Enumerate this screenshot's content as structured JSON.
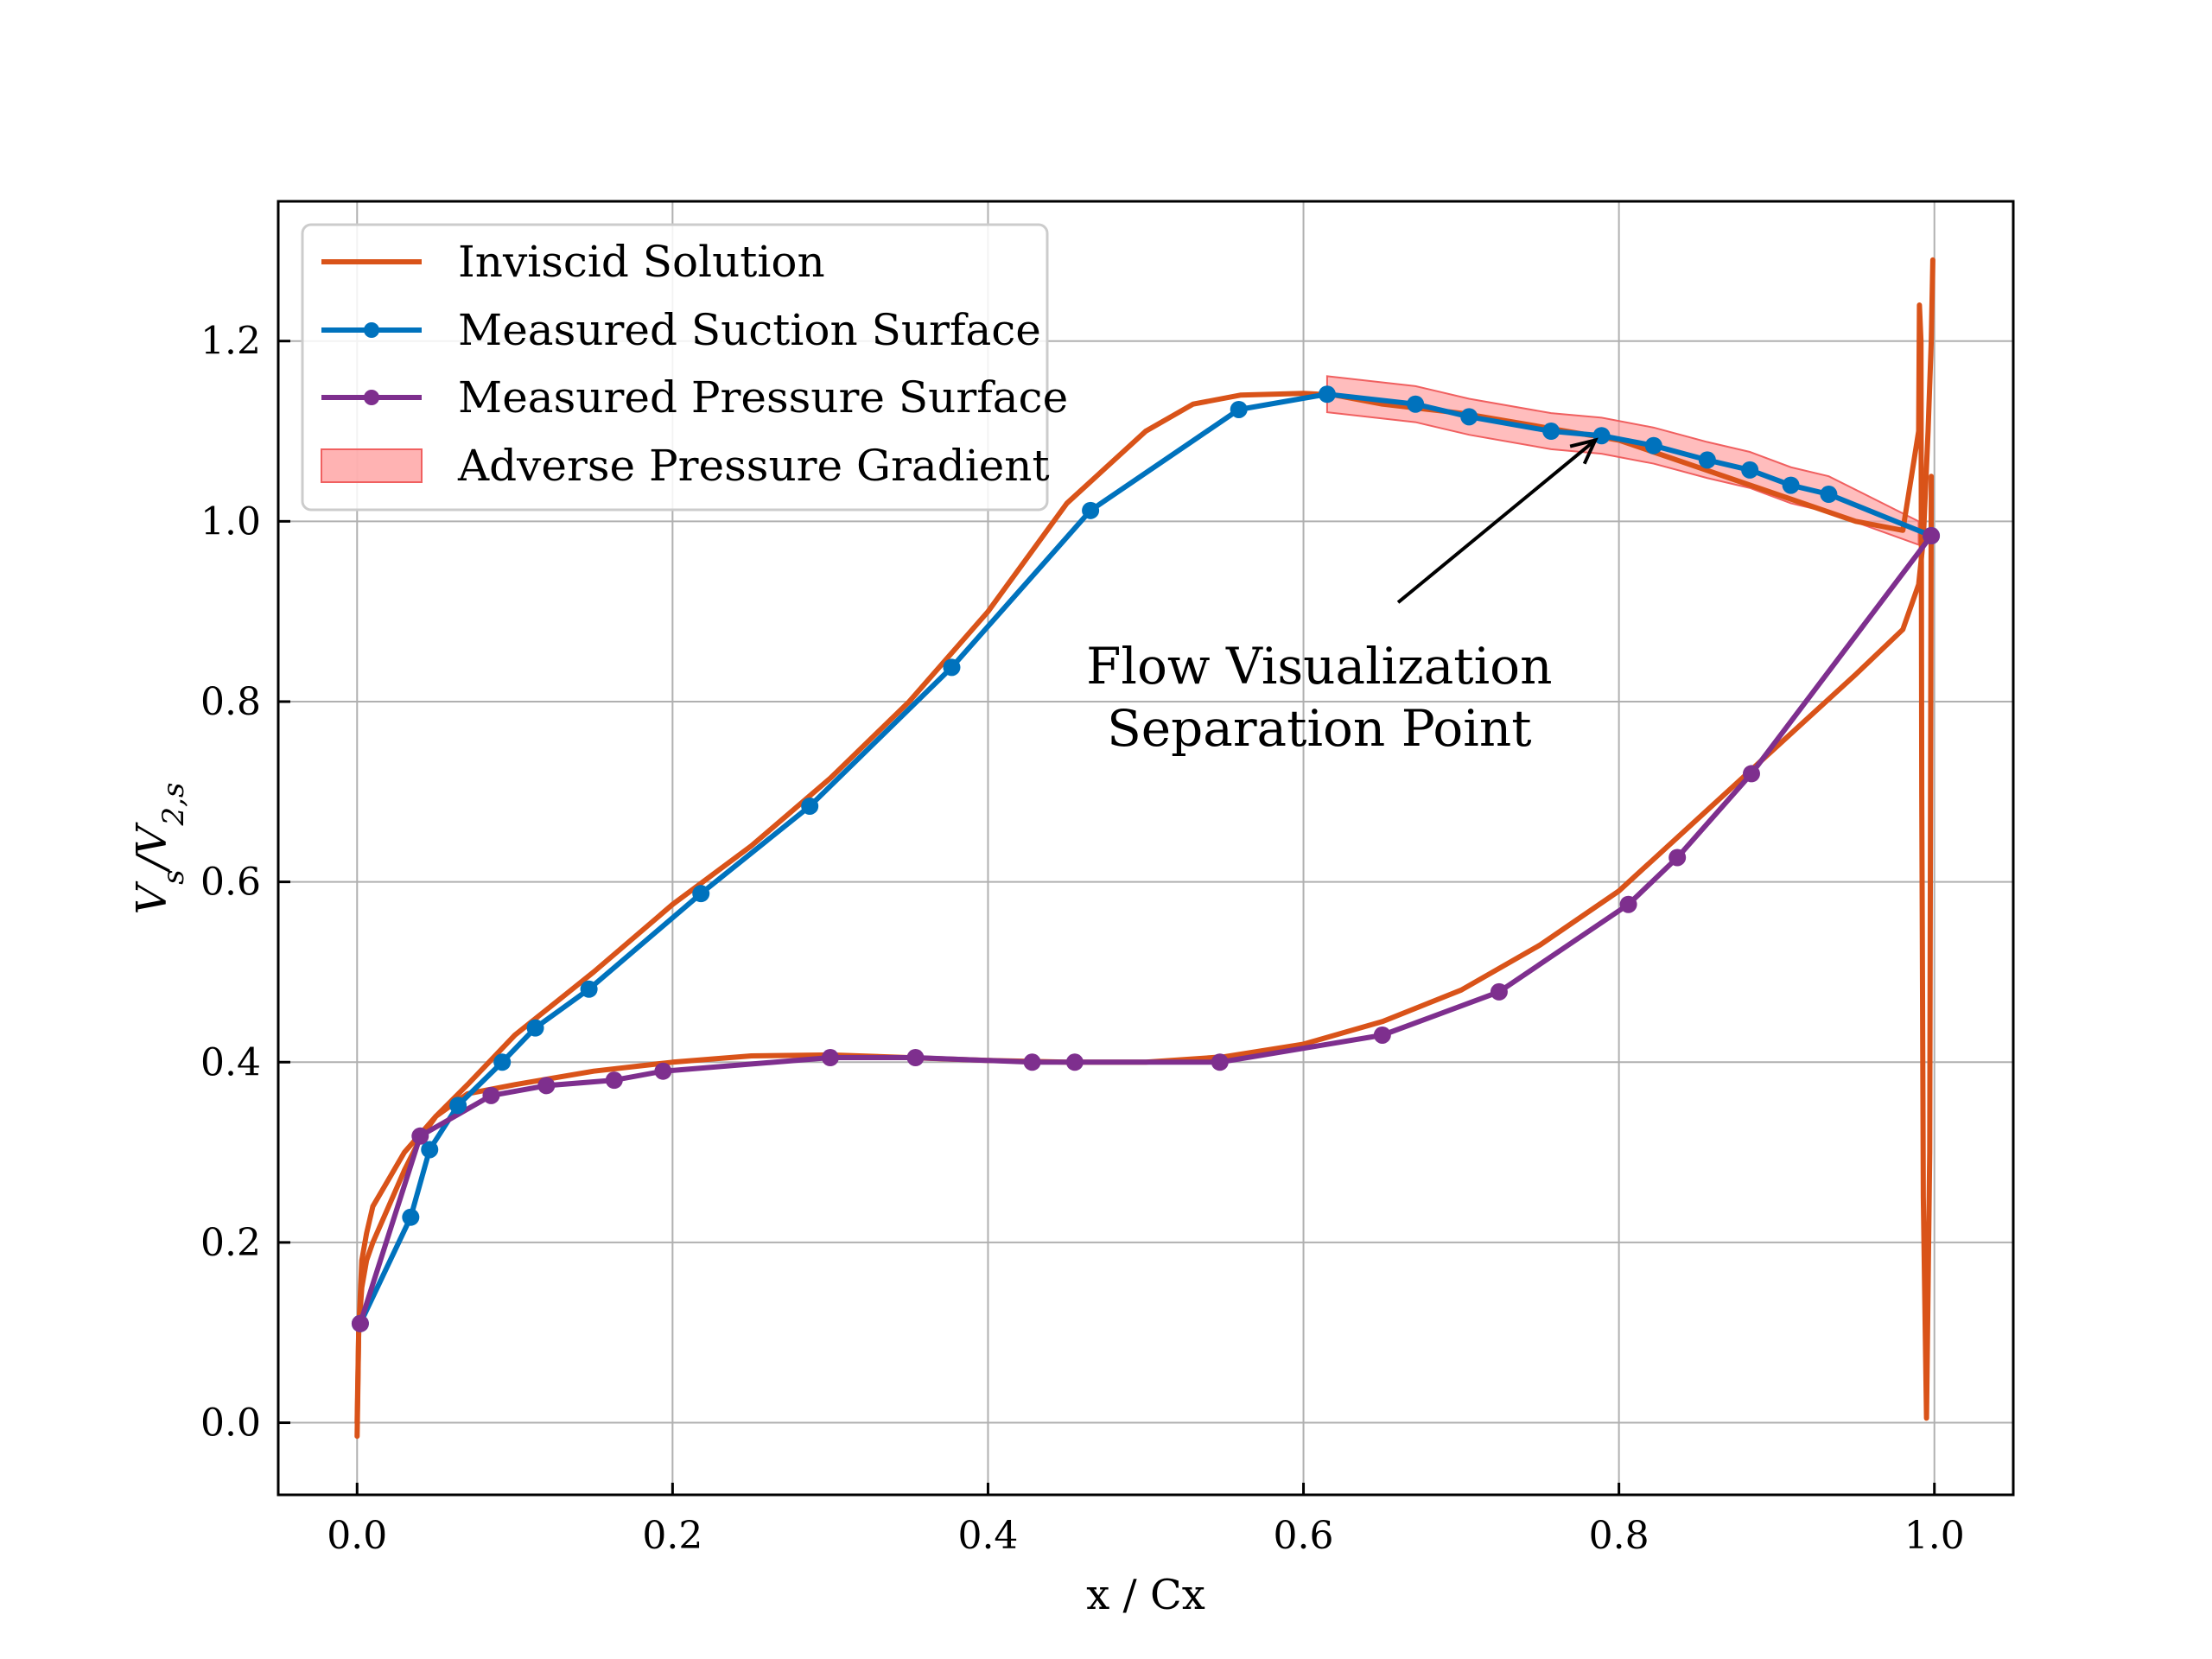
{
  "chart_data": {
    "type": "line",
    "title": "",
    "xlabel": "x / Cx",
    "ylabel": "Vs/V2,s",
    "xlim": [
      -0.05,
      1.05
    ],
    "ylim": [
      -0.08,
      1.355
    ],
    "xticks": [
      0.0,
      0.2,
      0.4,
      0.6,
      0.8,
      1.0
    ],
    "yticks": [
      0.0,
      0.2,
      0.4,
      0.6,
      0.8,
      1.0,
      1.2
    ],
    "xtick_labels": [
      "0.0",
      "0.2",
      "0.4",
      "0.6",
      "0.8",
      "1.0"
    ],
    "ytick_labels": [
      "0.0",
      "0.2",
      "0.4",
      "0.6",
      "0.8",
      "1.0",
      "1.2"
    ],
    "grid": true,
    "legend_position": "top-left",
    "series": [
      {
        "name": "Inviscid Solution",
        "color": "#d95319",
        "marker": "none",
        "segments": [
          {
            "x": [
              0.0,
              0.0005,
              0.001,
              0.003,
              0.006,
              0.01,
              0.02,
              0.03,
              0.05,
              0.07,
              0.1,
              0.15,
              0.2,
              0.25,
              0.3,
              0.35,
              0.4,
              0.45,
              0.5,
              0.53,
              0.56,
              0.6,
              0.62,
              0.65,
              0.7,
              0.75,
              0.8,
              0.85,
              0.9,
              0.95,
              0.98,
              0.99,
              0.9905,
              0.9915,
              0.992,
              0.993,
              0.995,
              0.997,
              0.998
            ],
            "y": [
              -0.015,
              0.04,
              0.1,
              0.18,
              0.21,
              0.24,
              0.27,
              0.3,
              0.34,
              0.375,
              0.43,
              0.5,
              0.575,
              0.64,
              0.715,
              0.8,
              0.9,
              1.02,
              1.1,
              1.13,
              1.14,
              1.142,
              1.14,
              1.13,
              1.12,
              1.105,
              1.09,
              1.06,
              1.03,
              1.0,
              0.99,
              1.1,
              1.24,
              1.2,
              0.7,
              0.25,
              0.005,
              0.3,
              1.05
            ]
          },
          {
            "x": [
              0.0,
              0.001,
              0.003,
              0.006,
              0.01,
              0.02,
              0.03,
              0.04,
              0.05,
              0.07,
              0.1,
              0.15,
              0.2,
              0.25,
              0.3,
              0.35,
              0.4,
              0.45,
              0.5,
              0.55,
              0.6,
              0.65,
              0.7,
              0.75,
              0.8,
              0.85,
              0.9,
              0.95,
              0.98,
              0.99,
              0.993,
              0.996,
              0.998,
              0.999
            ],
            "y": [
              0.0,
              0.1,
              0.15,
              0.18,
              0.2,
              0.24,
              0.28,
              0.315,
              0.34,
              0.365,
              0.375,
              0.39,
              0.4,
              0.407,
              0.408,
              0.405,
              0.402,
              0.4,
              0.4,
              0.406,
              0.42,
              0.445,
              0.48,
              0.53,
              0.59,
              0.67,
              0.75,
              0.83,
              0.88,
              0.93,
              0.98,
              1.1,
              1.2,
              1.29
            ]
          }
        ]
      },
      {
        "name": "Measured Suction Surface",
        "color": "#0072bd",
        "marker": "circle",
        "x": [
          0.002,
          0.034,
          0.046,
          0.064,
          0.092,
          0.113,
          0.147,
          0.218,
          0.287,
          0.377,
          0.465,
          0.559,
          0.615,
          0.671,
          0.705,
          0.757,
          0.789,
          0.822,
          0.856,
          0.883,
          0.909,
          0.933,
          0.998
        ],
        "y": [
          0.11,
          0.228,
          0.303,
          0.352,
          0.4,
          0.438,
          0.481,
          0.587,
          0.684,
          0.838,
          1.012,
          1.124,
          1.141,
          1.13,
          1.116,
          1.1,
          1.095,
          1.084,
          1.068,
          1.057,
          1.04,
          1.03,
          0.984
        ]
      },
      {
        "name": "Measured Pressure Surface",
        "color": "#7e2f8e",
        "marker": "circle",
        "x": [
          0.002,
          0.04,
          0.085,
          0.12,
          0.163,
          0.194,
          0.3,
          0.354,
          0.428,
          0.455,
          0.547,
          0.65,
          0.724,
          0.806,
          0.837,
          0.884,
          0.998
        ],
        "y": [
          0.11,
          0.318,
          0.363,
          0.374,
          0.38,
          0.39,
          0.405,
          0.405,
          0.4,
          0.4,
          0.4,
          0.43,
          0.478,
          0.575,
          0.627,
          0.72,
          0.984
        ]
      },
      {
        "name": "Adverse Pressure Gradient",
        "type": "band",
        "color": "#ff9a9a",
        "x": [
          0.615,
          0.671,
          0.705,
          0.757,
          0.789,
          0.822,
          0.856,
          0.883,
          0.909,
          0.933,
          0.99
        ],
        "lower": [
          1.121,
          1.11,
          1.096,
          1.08,
          1.075,
          1.064,
          1.048,
          1.037,
          1.02,
          1.01,
          0.974
        ],
        "upper": [
          1.161,
          1.15,
          1.136,
          1.12,
          1.115,
          1.104,
          1.088,
          1.077,
          1.06,
          1.05,
          1.0
        ]
      }
    ],
    "annotations": [
      {
        "text_lines": [
          "Flow Visualization",
          "Separation Point"
        ],
        "text_x": 0.61,
        "text_y": 0.82,
        "arrow_from": [
          0.66,
          0.91
        ],
        "arrow_to": [
          0.785,
          1.09
        ]
      }
    ]
  }
}
